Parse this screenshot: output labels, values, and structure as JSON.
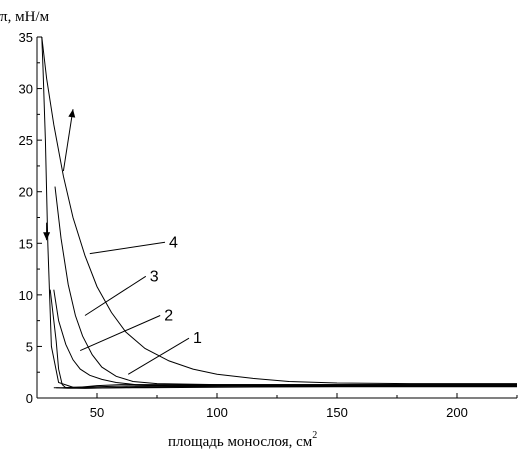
{
  "chart_data": {
    "type": "line",
    "ylabel": "π, мН/м",
    "xlabel": "площадь монослоя, см",
    "xlabel_superscript": "2",
    "xlim": [
      25,
      225
    ],
    "ylim": [
      0,
      35
    ],
    "xticks": [
      50,
      100,
      150,
      200
    ],
    "yticks": [
      0,
      5,
      10,
      15,
      20,
      25,
      30,
      35
    ],
    "grid": false,
    "legend": "none",
    "line_color": "#000000",
    "series": [
      {
        "label": "1",
        "points": [
          [
            30.5,
            10.5
          ],
          [
            31.5,
            8.5
          ],
          [
            33,
            5.5
          ],
          [
            34,
            2.8
          ],
          [
            35.5,
            1.3
          ],
          [
            37,
            1.0
          ],
          [
            40,
            1.0
          ],
          [
            45,
            1.1
          ],
          [
            50,
            1.2
          ],
          [
            60,
            1.3
          ],
          [
            80,
            1.3
          ],
          [
            120,
            1.3
          ],
          [
            225,
            1.3
          ]
        ],
        "return": [
          [
            225,
            1.3
          ],
          [
            120,
            1.25
          ],
          [
            80,
            1.2
          ],
          [
            60,
            1.15
          ],
          [
            50,
            1.1
          ],
          [
            40,
            1.05
          ],
          [
            35,
            1.0
          ],
          [
            32,
            1.0
          ]
        ],
        "label_anchor": [
          63,
          2.3
        ],
        "label_pos": [
          90,
          5.8
        ]
      },
      {
        "label": "2",
        "points": [
          [
            32,
            10.5
          ],
          [
            34,
            7.5
          ],
          [
            37,
            5.2
          ],
          [
            40,
            3.7
          ],
          [
            43,
            2.8
          ],
          [
            47,
            2.2
          ],
          [
            52,
            1.8
          ],
          [
            58,
            1.5
          ],
          [
            66,
            1.3
          ],
          [
            80,
            1.2
          ],
          [
            120,
            1.2
          ],
          [
            225,
            1.2
          ]
        ],
        "return": [
          [
            225,
            1.15
          ],
          [
            120,
            1.15
          ],
          [
            80,
            1.1
          ],
          [
            60,
            1.0
          ],
          [
            45,
            0.95
          ],
          [
            38,
            0.95
          ],
          [
            33,
            1.0
          ]
        ],
        "label_anchor": [
          43,
          4.6
        ],
        "label_pos": [
          78,
          8.0
        ]
      },
      {
        "label": "3",
        "points": [
          [
            32.5,
            20.5
          ],
          [
            35,
            15.5
          ],
          [
            38,
            11.0
          ],
          [
            41,
            8.0
          ],
          [
            44,
            6.0
          ],
          [
            48,
            4.2
          ],
          [
            52,
            3.0
          ],
          [
            58,
            2.1
          ],
          [
            65,
            1.6
          ],
          [
            75,
            1.4
          ],
          [
            100,
            1.3
          ],
          [
            150,
            1.3
          ],
          [
            225,
            1.3
          ]
        ],
        "return": [
          [
            225,
            1.2
          ],
          [
            150,
            1.2
          ],
          [
            100,
            1.15
          ],
          [
            70,
            1.1
          ],
          [
            55,
            1.0
          ],
          [
            45,
            0.95
          ],
          [
            38,
            1.0
          ]
        ],
        "label_anchor": [
          45,
          8.0
        ],
        "label_pos": [
          72,
          11.8
        ]
      },
      {
        "label": "4",
        "points": [
          [
            27,
            35.0
          ],
          [
            29,
            31.0
          ],
          [
            32,
            26.5
          ],
          [
            36,
            21.5
          ],
          [
            40,
            17.5
          ],
          [
            45,
            13.8
          ],
          [
            50,
            10.8
          ],
          [
            56,
            8.3
          ],
          [
            62,
            6.4
          ],
          [
            70,
            4.8
          ],
          [
            80,
            3.6
          ],
          [
            90,
            2.8
          ],
          [
            100,
            2.3
          ],
          [
            115,
            1.9
          ],
          [
            130,
            1.6
          ],
          [
            150,
            1.45
          ],
          [
            180,
            1.4
          ],
          [
            225,
            1.4
          ]
        ],
        "return": [
          [
            225,
            1.1
          ],
          [
            150,
            1.1
          ],
          [
            100,
            1.05
          ],
          [
            70,
            1.0
          ],
          [
            50,
            1.0
          ],
          [
            40,
            1.05
          ],
          [
            34,
            1.5
          ],
          [
            31,
            5.0
          ],
          [
            29.5,
            15.0
          ],
          [
            28.5,
            25.0
          ],
          [
            27.5,
            32.0
          ],
          [
            27,
            35.0
          ]
        ],
        "label_anchor": [
          47,
          14.0
        ],
        "label_pos": [
          80,
          15.1
        ]
      }
    ],
    "arrows": [
      {
        "from": [
          36,
          22.0
        ],
        "to": [
          40,
          28.0
        ],
        "direction": "up"
      },
      {
        "from": [
          29,
          17.0
        ],
        "to": [
          29,
          15.3
        ],
        "direction": "down"
      }
    ]
  }
}
